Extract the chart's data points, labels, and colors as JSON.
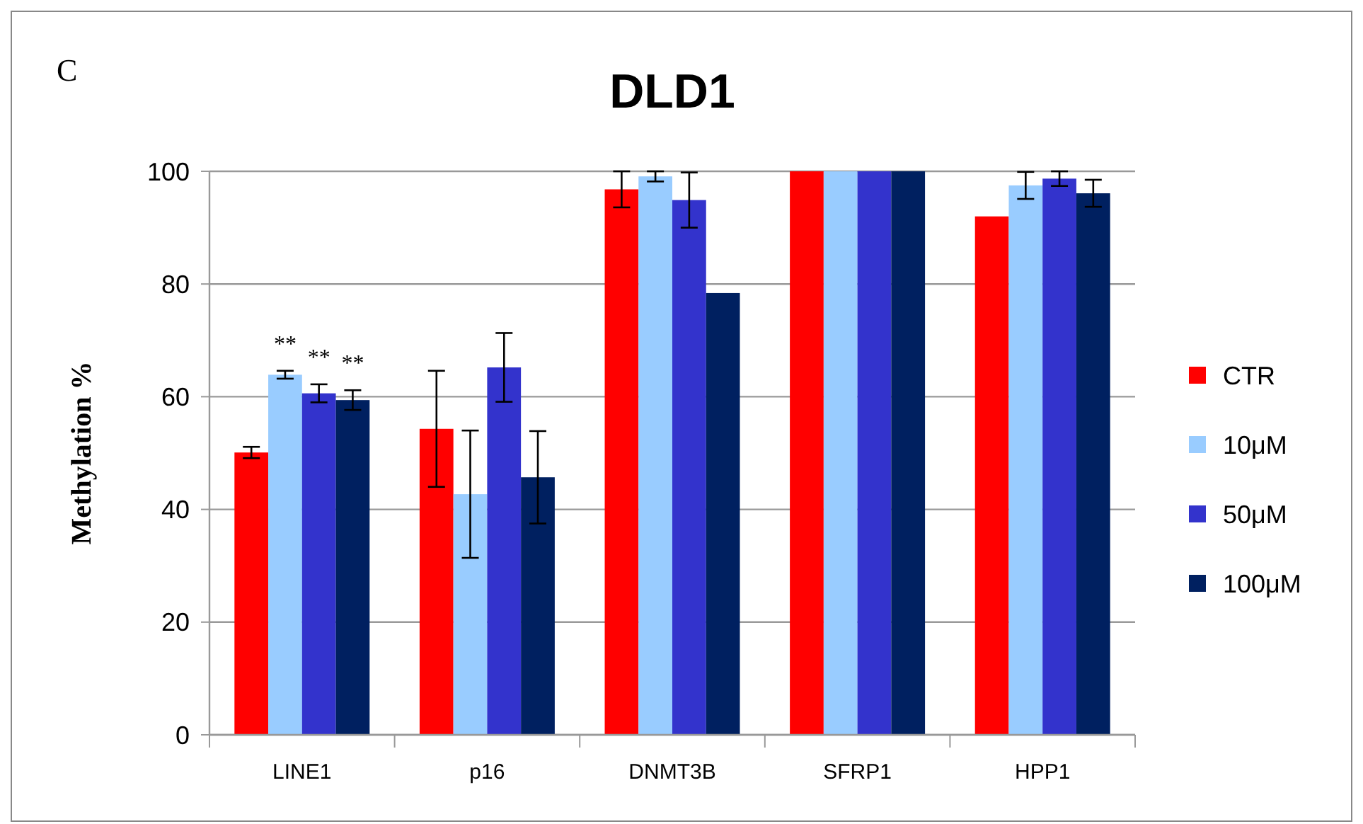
{
  "chart_data": {
    "type": "bar",
    "title": "DLD1",
    "ylabel": "Methylation %",
    "annotations": [
      "C",
      "**",
      "**",
      "**"
    ],
    "categories": [
      "LINE1",
      "p16",
      "DNMT3B",
      "SFRP1",
      "HPP1"
    ],
    "series": [
      {
        "name": "CTR",
        "color": "#ff0000",
        "values": [
          50.1,
          54.3,
          96.8,
          100,
          92.0
        ],
        "errors": [
          1,
          10.3,
          3.2,
          null,
          null
        ]
      },
      {
        "name": "10μM",
        "color": "#99ccff",
        "values": [
          63.9,
          42.7,
          99.1,
          100,
          97.5
        ],
        "errors": [
          0.7,
          11.3,
          0.9,
          null,
          2.4
        ]
      },
      {
        "name": "50μM",
        "color": "#3333cc",
        "values": [
          60.6,
          65.2,
          94.9,
          100,
          98.7
        ],
        "errors": [
          1.6,
          6.1,
          4.9,
          null,
          1.3
        ]
      },
      {
        "name": "100μM",
        "color": "#002060",
        "values": [
          59.4,
          45.7,
          78.4,
          100,
          96.1
        ],
        "errors": [
          1.75,
          8.2,
          null,
          null,
          2.4
        ]
      }
    ],
    "ylim": [
      0,
      100
    ],
    "yticks": [
      0,
      20,
      40,
      60,
      80,
      100
    ],
    "grid": "y",
    "legend": "right"
  }
}
